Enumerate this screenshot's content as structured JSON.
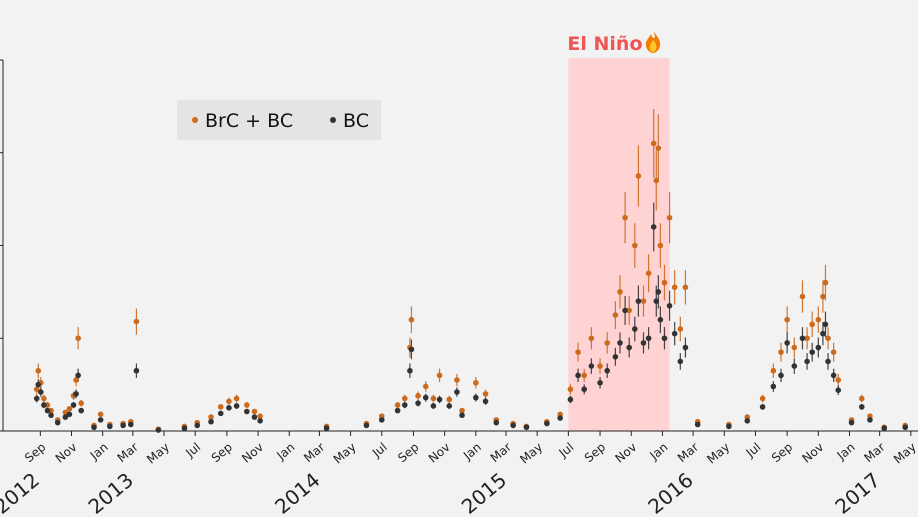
{
  "chart_data": {
    "type": "scatter",
    "title": "",
    "xlabel": "",
    "ylabel": "",
    "x_range": [
      "2012-06-20",
      "2017-05-15"
    ],
    "y_range": [
      0,
      40
    ],
    "grid": false,
    "legend_placement": "top-left",
    "legend": [
      {
        "label": "BrC + BC",
        "color": "#cc6a1e"
      },
      {
        "label": "BC",
        "color": "#333333"
      }
    ],
    "month_ticks": [
      {
        "date": "2012-09-01",
        "label": "Sep"
      },
      {
        "date": "2012-11-01",
        "label": "Nov"
      },
      {
        "date": "2013-01-01",
        "label": "Jan"
      },
      {
        "date": "2013-03-01",
        "label": "Mar"
      },
      {
        "date": "2013-05-01",
        "label": "May"
      },
      {
        "date": "2013-07-01",
        "label": "Jul"
      },
      {
        "date": "2013-09-01",
        "label": "Sep"
      },
      {
        "date": "2013-11-01",
        "label": "Nov"
      },
      {
        "date": "2014-01-01",
        "label": "Jan"
      },
      {
        "date": "2014-03-01",
        "label": "Mar"
      },
      {
        "date": "2014-05-01",
        "label": "May"
      },
      {
        "date": "2014-07-01",
        "label": "Jul"
      },
      {
        "date": "2014-09-01",
        "label": "Sep"
      },
      {
        "date": "2014-11-01",
        "label": "Nov"
      },
      {
        "date": "2015-01-01",
        "label": "Jan"
      },
      {
        "date": "2015-03-01",
        "label": "Mar"
      },
      {
        "date": "2015-05-01",
        "label": "May"
      },
      {
        "date": "2015-07-01",
        "label": "Jul"
      },
      {
        "date": "2015-09-01",
        "label": "Sep"
      },
      {
        "date": "2015-11-01",
        "label": "Nov"
      },
      {
        "date": "2016-01-01",
        "label": "Jan"
      },
      {
        "date": "2016-03-01",
        "label": "Mar"
      },
      {
        "date": "2016-05-01",
        "label": "May"
      },
      {
        "date": "2016-07-01",
        "label": "Jul"
      },
      {
        "date": "2016-09-01",
        "label": "Sep"
      },
      {
        "date": "2016-11-01",
        "label": "Nov"
      },
      {
        "date": "2017-01-01",
        "label": "Jan"
      },
      {
        "date": "2017-03-01",
        "label": "Mar"
      },
      {
        "date": "2017-05-01",
        "label": "May"
      }
    ],
    "year_labels": [
      {
        "date": "2012-08-01",
        "label": "2012"
      },
      {
        "date": "2013-02-01",
        "label": "2013"
      },
      {
        "date": "2014-02-01",
        "label": "2014"
      },
      {
        "date": "2015-02-01",
        "label": "2015"
      },
      {
        "date": "2016-02-01",
        "label": "2016"
      },
      {
        "date": "2017-02-01",
        "label": "2017"
      }
    ],
    "annotation": {
      "text": "El Niño",
      "icon": "fire-icon",
      "start": "2015-07-01",
      "end": "2016-01-15",
      "color": "#ffd3d3",
      "text_color": "#ee5555"
    },
    "series": [
      {
        "name": "BrC + BC",
        "color": "#cc6a1e",
        "points": [
          [
            "2012-08-25",
            4.5
          ],
          [
            "2012-08-28",
            6.5
          ],
          [
            "2012-09-02",
            5.2
          ],
          [
            "2012-09-08",
            3.5
          ],
          [
            "2012-09-15",
            2.8
          ],
          [
            "2012-09-22",
            2.2
          ],
          [
            "2012-10-05",
            1.2
          ],
          [
            "2012-10-20",
            2.0
          ],
          [
            "2012-10-28",
            2.4
          ],
          [
            "2012-11-05",
            3.8
          ],
          [
            "2012-11-10",
            5.5
          ],
          [
            "2012-11-14",
            10.0
          ],
          [
            "2012-11-20",
            3.0
          ],
          [
            "2012-12-15",
            0.6
          ],
          [
            "2012-12-28",
            1.8
          ],
          [
            "2013-01-15",
            0.7
          ],
          [
            "2013-02-10",
            0.8
          ],
          [
            "2013-02-25",
            1.0
          ],
          [
            "2013-03-08",
            11.8
          ],
          [
            "2013-04-20",
            0.2
          ],
          [
            "2013-06-10",
            0.5
          ],
          [
            "2013-07-05",
            0.9
          ],
          [
            "2013-08-01",
            1.5
          ],
          [
            "2013-08-20",
            2.6
          ],
          [
            "2013-09-05",
            3.2
          ],
          [
            "2013-09-20",
            3.5
          ],
          [
            "2013-10-10",
            2.8
          ],
          [
            "2013-10-25",
            2.1
          ],
          [
            "2013-11-05",
            1.6
          ],
          [
            "2014-03-15",
            0.5
          ],
          [
            "2014-06-01",
            0.8
          ],
          [
            "2014-07-01",
            1.6
          ],
          [
            "2014-08-01",
            2.8
          ],
          [
            "2014-08-15",
            3.5
          ],
          [
            "2014-08-25",
            9.0
          ],
          [
            "2014-08-28",
            12.0
          ],
          [
            "2014-09-10",
            3.8
          ],
          [
            "2014-09-25",
            4.8
          ],
          [
            "2014-10-10",
            3.5
          ],
          [
            "2014-10-22",
            6.0
          ],
          [
            "2014-11-10",
            3.4
          ],
          [
            "2014-11-25",
            5.5
          ],
          [
            "2014-12-05",
            2.2
          ],
          [
            "2015-01-01",
            5.2
          ],
          [
            "2015-01-20",
            4.0
          ],
          [
            "2015-02-10",
            1.2
          ],
          [
            "2015-03-15",
            0.8
          ],
          [
            "2015-04-10",
            0.5
          ],
          [
            "2015-05-20",
            1.0
          ],
          [
            "2015-06-15",
            1.8
          ],
          [
            "2015-07-05",
            4.5
          ],
          [
            "2015-07-20",
            8.5
          ],
          [
            "2015-08-01",
            6.0
          ],
          [
            "2015-08-15",
            10.0
          ],
          [
            "2015-09-01",
            7.0
          ],
          [
            "2015-09-15",
            9.5
          ],
          [
            "2015-10-01",
            12.5
          ],
          [
            "2015-10-10",
            15.0
          ],
          [
            "2015-10-20",
            23.0
          ],
          [
            "2015-10-28",
            13.0
          ],
          [
            "2015-11-08",
            20.0
          ],
          [
            "2015-11-15",
            27.5
          ],
          [
            "2015-11-25",
            14.0
          ],
          [
            "2015-12-05",
            17.0
          ],
          [
            "2015-12-15",
            31.0
          ],
          [
            "2015-12-20",
            27.0
          ],
          [
            "2015-12-24",
            30.5
          ],
          [
            "2015-12-28",
            20.0
          ],
          [
            "2016-01-05",
            16.0
          ],
          [
            "2016-01-15",
            23.0
          ],
          [
            "2016-01-25",
            15.5
          ],
          [
            "2016-02-05",
            11.0
          ],
          [
            "2016-02-15",
            15.5
          ],
          [
            "2016-03-10",
            1.0
          ],
          [
            "2016-05-10",
            0.7
          ],
          [
            "2016-06-15",
            1.5
          ],
          [
            "2016-07-15",
            3.5
          ],
          [
            "2016-08-05",
            6.5
          ],
          [
            "2016-08-20",
            8.5
          ],
          [
            "2016-09-01",
            12.0
          ],
          [
            "2016-09-15",
            9.0
          ],
          [
            "2016-10-01",
            14.5
          ],
          [
            "2016-10-10",
            10.0
          ],
          [
            "2016-10-20",
            11.5
          ],
          [
            "2016-11-01",
            12.0
          ],
          [
            "2016-11-10",
            14.5
          ],
          [
            "2016-11-15",
            16.0
          ],
          [
            "2016-11-20",
            10.0
          ],
          [
            "2016-12-01",
            8.5
          ],
          [
            "2016-12-10",
            5.5
          ],
          [
            "2017-01-05",
            1.2
          ],
          [
            "2017-01-25",
            3.5
          ],
          [
            "2017-02-10",
            1.6
          ],
          [
            "2017-03-10",
            0.4
          ],
          [
            "2017-04-20",
            0.6
          ]
        ]
      },
      {
        "name": "BC",
        "color": "#333333",
        "points": [
          [
            "2012-08-25",
            3.5
          ],
          [
            "2012-08-28",
            5.0
          ],
          [
            "2012-09-02",
            4.2
          ],
          [
            "2012-09-08",
            2.8
          ],
          [
            "2012-09-15",
            2.2
          ],
          [
            "2012-09-22",
            1.7
          ],
          [
            "2012-10-05",
            0.9
          ],
          [
            "2012-10-20",
            1.5
          ],
          [
            "2012-10-28",
            1.8
          ],
          [
            "2012-11-05",
            2.8
          ],
          [
            "2012-11-10",
            4.0
          ],
          [
            "2012-11-14",
            6.0
          ],
          [
            "2012-11-20",
            2.2
          ],
          [
            "2012-12-15",
            0.4
          ],
          [
            "2012-12-28",
            1.2
          ],
          [
            "2013-01-15",
            0.5
          ],
          [
            "2013-02-10",
            0.6
          ],
          [
            "2013-02-25",
            0.7
          ],
          [
            "2013-03-08",
            6.5
          ],
          [
            "2013-04-20",
            0.1
          ],
          [
            "2013-06-10",
            0.3
          ],
          [
            "2013-07-05",
            0.6
          ],
          [
            "2013-08-01",
            1.0
          ],
          [
            "2013-08-20",
            1.9
          ],
          [
            "2013-09-05",
            2.5
          ],
          [
            "2013-09-20",
            2.7
          ],
          [
            "2013-10-10",
            2.1
          ],
          [
            "2013-10-25",
            1.5
          ],
          [
            "2013-11-05",
            1.1
          ],
          [
            "2014-03-15",
            0.3
          ],
          [
            "2014-06-01",
            0.6
          ],
          [
            "2014-07-01",
            1.2
          ],
          [
            "2014-08-01",
            2.2
          ],
          [
            "2014-08-15",
            2.8
          ],
          [
            "2014-08-25",
            6.5
          ],
          [
            "2014-08-28",
            8.8
          ],
          [
            "2014-09-10",
            3.0
          ],
          [
            "2014-09-25",
            3.6
          ],
          [
            "2014-10-10",
            2.7
          ],
          [
            "2014-10-22",
            3.4
          ],
          [
            "2014-11-10",
            2.7
          ],
          [
            "2014-11-25",
            4.2
          ],
          [
            "2014-12-05",
            1.7
          ],
          [
            "2015-01-01",
            3.6
          ],
          [
            "2015-01-20",
            3.2
          ],
          [
            "2015-02-10",
            0.9
          ],
          [
            "2015-03-15",
            0.6
          ],
          [
            "2015-04-10",
            0.4
          ],
          [
            "2015-05-20",
            0.8
          ],
          [
            "2015-06-15",
            1.4
          ],
          [
            "2015-07-05",
            3.4
          ],
          [
            "2015-07-20",
            6.0
          ],
          [
            "2015-08-01",
            4.5
          ],
          [
            "2015-08-15",
            7.0
          ],
          [
            "2015-09-01",
            5.2
          ],
          [
            "2015-09-15",
            6.5
          ],
          [
            "2015-10-01",
            8.0
          ],
          [
            "2015-10-10",
            9.5
          ],
          [
            "2015-10-20",
            13.0
          ],
          [
            "2015-10-28",
            9.0
          ],
          [
            "2015-11-08",
            11.0
          ],
          [
            "2015-11-15",
            14.0
          ],
          [
            "2015-11-25",
            9.5
          ],
          [
            "2015-12-05",
            10.0
          ],
          [
            "2015-12-15",
            22.0
          ],
          [
            "2015-12-20",
            14.0
          ],
          [
            "2015-12-24",
            15.0
          ],
          [
            "2015-12-28",
            12.0
          ],
          [
            "2016-01-05",
            10.0
          ],
          [
            "2016-01-15",
            13.5
          ],
          [
            "2016-01-25",
            10.5
          ],
          [
            "2016-02-05",
            7.5
          ],
          [
            "2016-02-15",
            9.0
          ],
          [
            "2016-03-10",
            0.7
          ],
          [
            "2016-05-10",
            0.5
          ],
          [
            "2016-06-15",
            1.1
          ],
          [
            "2016-07-15",
            2.6
          ],
          [
            "2016-08-05",
            4.8
          ],
          [
            "2016-08-20",
            6.0
          ],
          [
            "2016-09-01",
            9.5
          ],
          [
            "2016-09-15",
            7.0
          ],
          [
            "2016-10-01",
            10.0
          ],
          [
            "2016-10-10",
            7.5
          ],
          [
            "2016-10-20",
            8.5
          ],
          [
            "2016-11-01",
            9.0
          ],
          [
            "2016-11-10",
            10.5
          ],
          [
            "2016-11-15",
            11.5
          ],
          [
            "2016-11-20",
            7.5
          ],
          [
            "2016-12-01",
            6.0
          ],
          [
            "2016-12-10",
            4.4
          ],
          [
            "2017-01-05",
            0.9
          ],
          [
            "2017-01-25",
            2.6
          ],
          [
            "2017-02-10",
            1.2
          ],
          [
            "2017-03-10",
            0.3
          ],
          [
            "2017-04-20",
            0.4
          ]
        ]
      }
    ]
  }
}
